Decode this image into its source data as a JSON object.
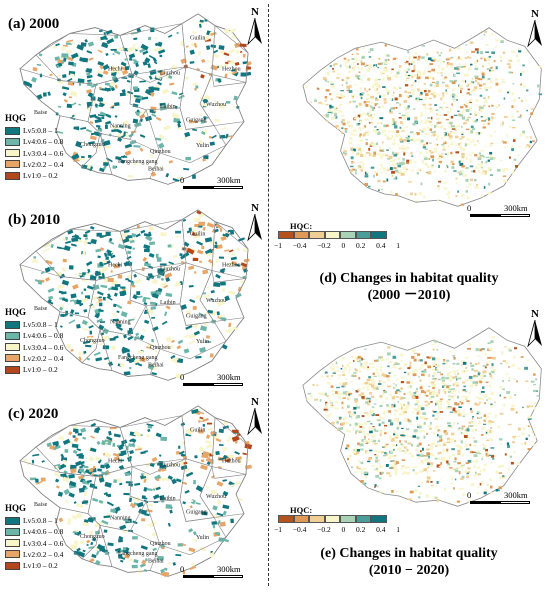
{
  "panels": [
    {
      "title": "(a) 2000"
    },
    {
      "title": "(b) 2010"
    },
    {
      "title": "(c) 2020"
    }
  ],
  "hqg_legend": {
    "title": "HQG",
    "items": [
      {
        "label": "Lv5:0.8 – 1",
        "color": "#11767f"
      },
      {
        "label": "Lv4:0.6 – 0.8",
        "color": "#6cb5a9"
      },
      {
        "label": "Lv3:0.4 – 0.6",
        "color": "#f8f5c8"
      },
      {
        "label": "Lv2:0.2 – 0.4",
        "color": "#e7a668"
      },
      {
        "label": "Lv1:0 – 0.2",
        "color": "#b2471c"
      }
    ]
  },
  "hqc_legend": {
    "title": "HQC:",
    "ticks": [
      "−1",
      "−0.4",
      "−0.2",
      "0",
      "0.2",
      "0.4",
      "1"
    ],
    "colors": [
      "#b5531e",
      "#df9a57",
      "#f0cf96",
      "#f8f5c8",
      "#a8d3b6",
      "#4a9e97",
      "#11767f"
    ]
  },
  "change_panels": [
    {
      "title_line1": "(d) Changes in habitat quality",
      "title_line2": "(2000 －2010)"
    },
    {
      "title_line1": "(e) Changes in habitat quality",
      "title_line2": "(2010 − 2020)"
    }
  ],
  "north_label": "N",
  "scale": {
    "zero": "0",
    "dist": "300km"
  },
  "city_labels": [
    "Guilin",
    "Hezhou",
    "Hechi",
    "Liuzhou",
    "Baise",
    "Laibin",
    "Wuzhou",
    "Guigang",
    "Nanning",
    "Chongzuo",
    "Yulin",
    "Qinzhou",
    "Fangcheng gang",
    "Beihai"
  ]
}
